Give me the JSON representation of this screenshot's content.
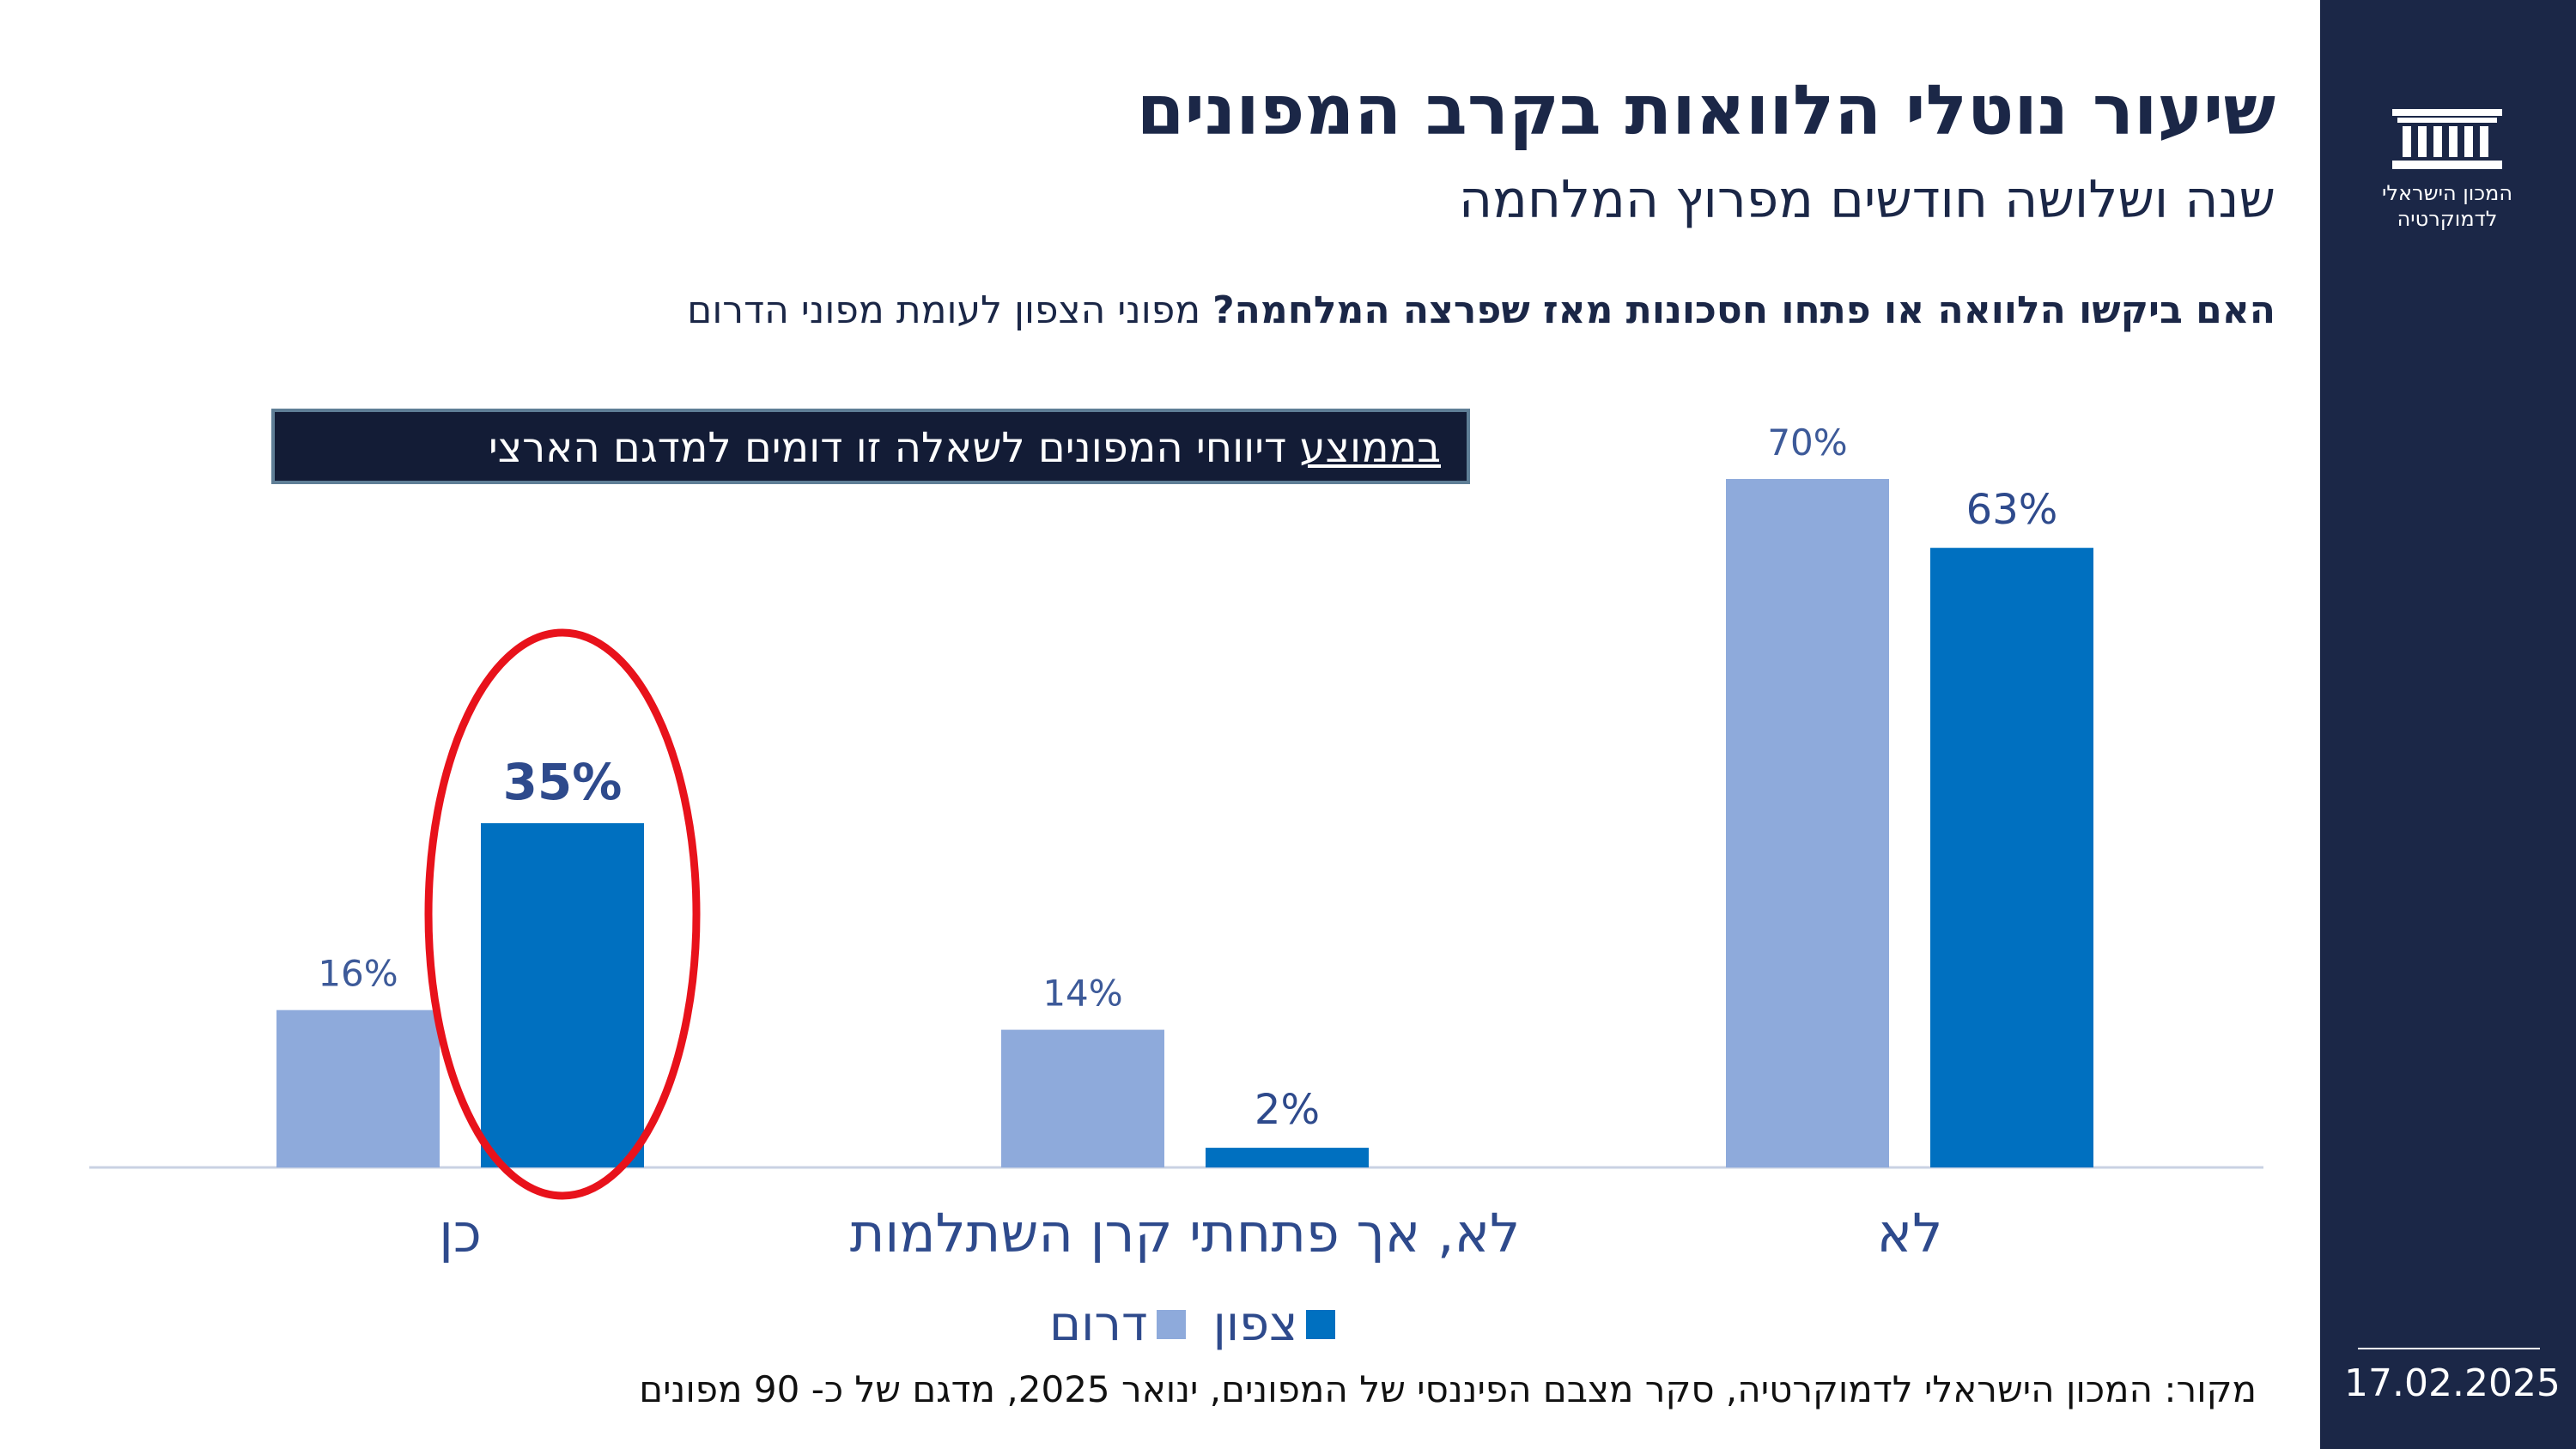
{
  "header": {
    "title": "שיעור נוטלי הלוואות בקרב המפונים",
    "subtitle": "שנה ושלושה חודשים מפרוץ המלחמה",
    "question_bold": "האם ביקשו הלוואה או פתחו חסכונות מאז שפרצה המלחמה?",
    "question_rest": " מפוני הצפון לעומת מפוני הדרום"
  },
  "callout": {
    "underlined": "בממוצע",
    "rest": " דיווחי המפונים לשאלה זו דומים למדגם הארצי"
  },
  "sidebar": {
    "logo_icon": "parliament-building-icon",
    "logo_line1": "המכון הישראלי",
    "logo_line2": "לדמוקרטיה",
    "date": "17.02.2025"
  },
  "source": "מקור: המכון הישראלי לדמוקרטיה,  סקר מצבם הפיננסי של המפונים, ינואר 2025, מדגם של כ- 90 מפונים",
  "colors": {
    "south": "#8eaadb",
    "north": "#0070c0",
    "navy": "#1b2747",
    "label": "#2e4a8c",
    "highlight": "#e8121b"
  },
  "chart_data": {
    "type": "bar",
    "categories": [
      "לא",
      "לא, אך פתחתי קרן השתלמות",
      "כן"
    ],
    "series": [
      {
        "name": "דרום",
        "values": [
          70,
          14,
          16
        ]
      },
      {
        "name": "צפון",
        "values": [
          63,
          2,
          35
        ]
      }
    ],
    "data_labels": {
      "דרום": [
        "70%",
        "14%",
        "16%"
      ],
      "צפון": [
        "63%",
        "2%",
        "35%"
      ]
    },
    "ylim": [
      0,
      70
    ],
    "grid": false,
    "legend": "bottom-center",
    "highlighted": {
      "category": "כן",
      "series": "צפון"
    }
  }
}
